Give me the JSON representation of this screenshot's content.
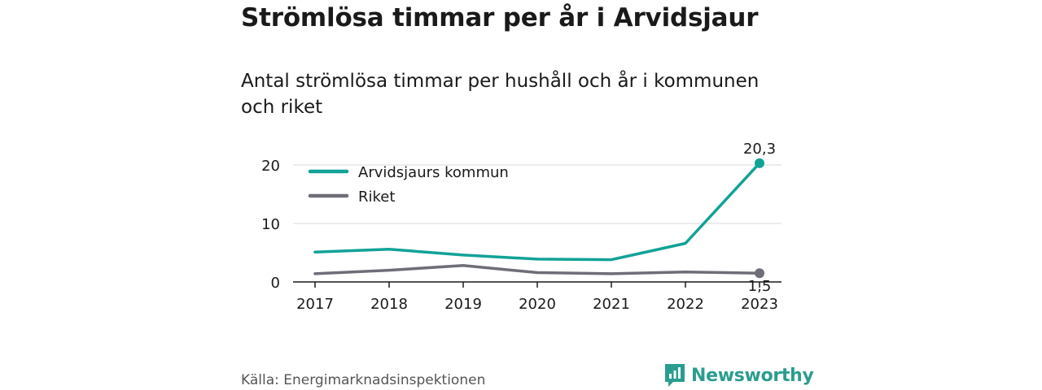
{
  "title": "Strömlösa timmar per år i Arvidsjaur",
  "subtitle": "Antal strömlösa timmar per hushåll och år i kommunen och riket",
  "source": "Källa: Energimarknadsinspektionen",
  "brand": {
    "name": "Newsworthy",
    "icon": "newsworthy-logo-icon",
    "color": "#2a9d8f"
  },
  "chart_data": {
    "type": "line",
    "categories": [
      "2017",
      "2018",
      "2019",
      "2020",
      "2021",
      "2022",
      "2023"
    ],
    "ylim": [
      0,
      22
    ],
    "yticks": [
      {
        "value": 0,
        "label": "0"
      },
      {
        "value": 10,
        "label": "10"
      },
      {
        "value": 20,
        "label": "20"
      }
    ],
    "grid": true,
    "legend_position": "top-left",
    "series": [
      {
        "name": "Arvidsjaurs kommun",
        "color": "#12a297",
        "values": [
          5.1,
          5.6,
          4.6,
          3.9,
          3.8,
          6.6,
          20.3
        ],
        "end_label": "20,3"
      },
      {
        "name": "Riket",
        "color": "#6e6e78",
        "values": [
          1.4,
          2.0,
          2.8,
          1.6,
          1.4,
          1.7,
          1.5
        ],
        "end_label": "1,5"
      }
    ]
  }
}
